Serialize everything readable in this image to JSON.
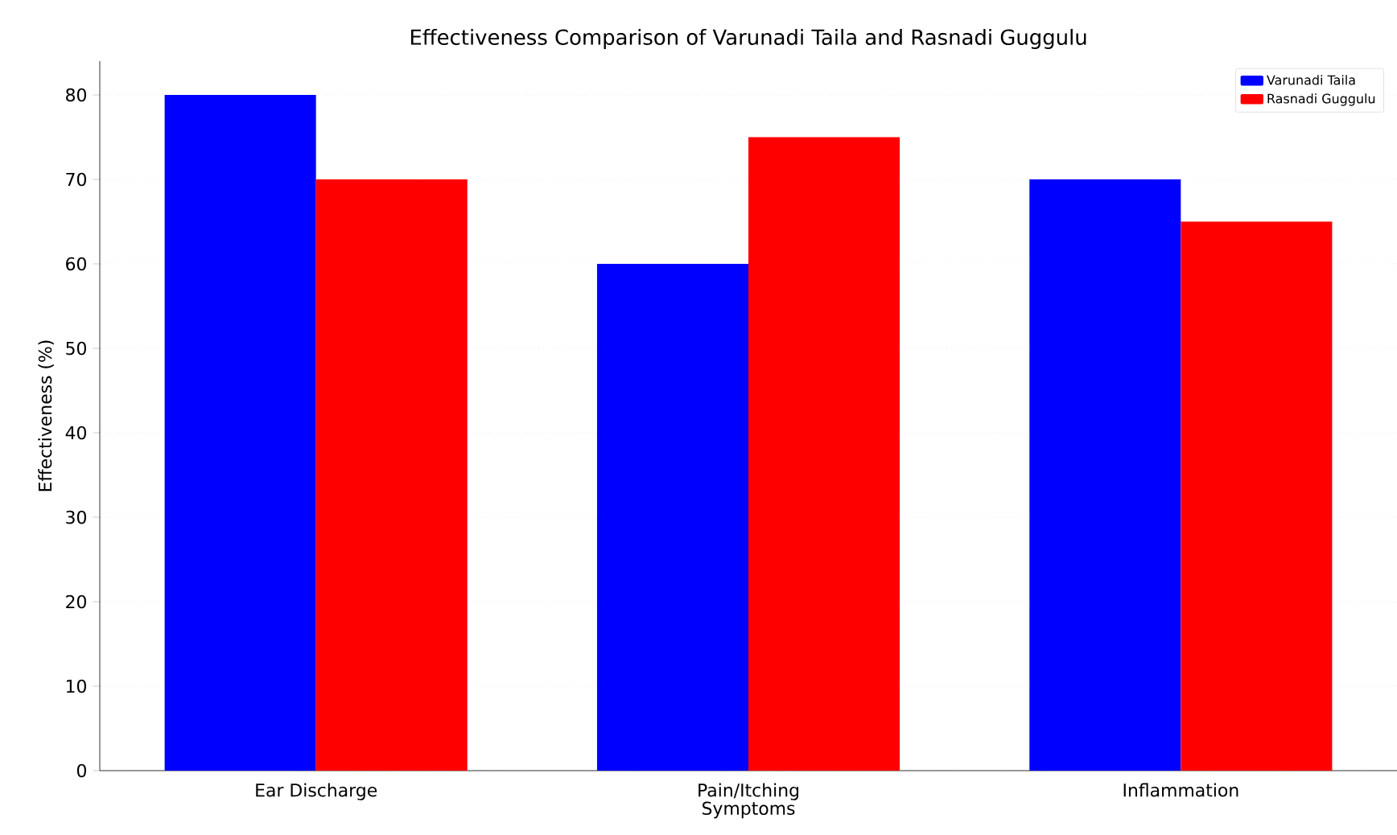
{
  "chart_data": {
    "type": "bar",
    "title": "Effectiveness Comparison of Varunadi Taila and Rasnadi Guggulu",
    "xlabel": "Symptoms",
    "ylabel": "Effectiveness (%)",
    "categories": [
      "Ear Discharge",
      "Pain/Itching",
      "Inflammation"
    ],
    "series": [
      {
        "name": "Varunadi Taila",
        "color": "#0000ff",
        "values": [
          80,
          60,
          70
        ]
      },
      {
        "name": "Rasnadi Guggulu",
        "color": "#ff0000",
        "values": [
          70,
          75,
          65
        ]
      }
    ],
    "ylim": [
      0,
      84
    ],
    "yticks": [
      0,
      10,
      20,
      30,
      40,
      50,
      60,
      70,
      80
    ],
    "grid": "y",
    "legend": "top right"
  }
}
